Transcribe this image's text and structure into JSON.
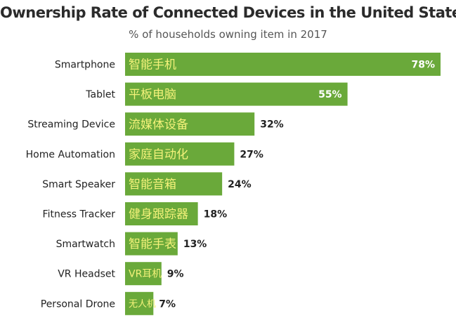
{
  "chart_data": {
    "type": "bar",
    "orientation": "horizontal",
    "title": "Ownership Rate of Connected Devices in the United States",
    "subtitle": "% of households owning item in 2017",
    "categories": [
      "Smartphone",
      "Tablet",
      "Streaming Device",
      "Home Automation",
      "Smart Speaker",
      "Fitness Tracker",
      "Smartwatch",
      "VR Headset",
      "Personal Drone"
    ],
    "category_labels_zh": [
      "智能手机",
      "平板电脑",
      "流媒体设备",
      "家庭自动化",
      "智能音箱",
      "健身跟踪器",
      "智能手表",
      "VR耳机",
      "无人机"
    ],
    "values": [
      78,
      55,
      32,
      27,
      24,
      18,
      13,
      9,
      7
    ],
    "value_labels": [
      "78%",
      "55%",
      "32%",
      "27%",
      "24%",
      "18%",
      "13%",
      "9%",
      "7%"
    ],
    "xlim": [
      0,
      78
    ],
    "grid": false,
    "legend": "none",
    "colors": {
      "bar": "#6aa93a",
      "zh_text": "#f4f27a",
      "value_inside": "#ffffff",
      "value_outside": "#222222"
    }
  }
}
